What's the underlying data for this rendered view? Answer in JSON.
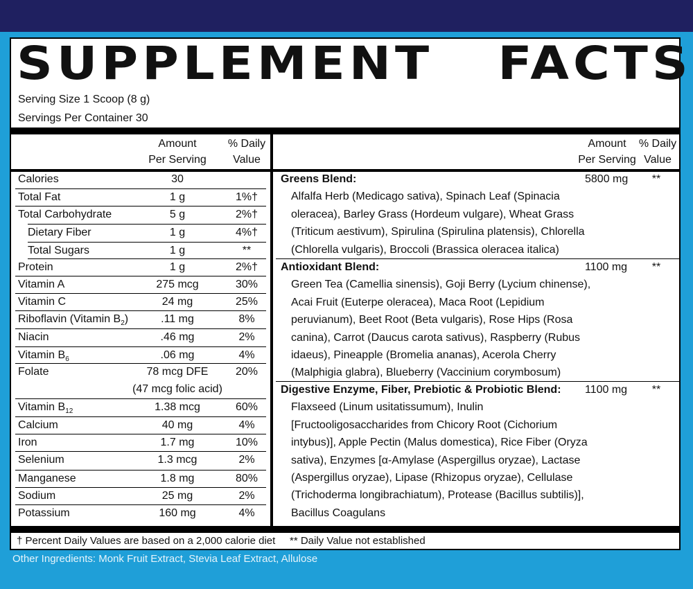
{
  "title": "SUPPLEMENT   FACTS",
  "serving_size": "Serving Size 1 Scoop (8 g)",
  "servings_per_container": "Servings Per Container 30",
  "headers": {
    "amount": "Amount",
    "per_serving": "Per Serving",
    "dv_top": "% Daily",
    "dv_bottom": "Value"
  },
  "nutrients": [
    {
      "name": "Calories",
      "amount": "30",
      "dv": ""
    },
    {
      "name": "Total Fat",
      "amount": "1 g",
      "dv": "1%†"
    },
    {
      "name": "Total Carbohydrate",
      "amount": "5 g",
      "dv": "2%†"
    },
    {
      "name": "Dietary Fiber",
      "amount": "1 g",
      "dv": "4%†"
    },
    {
      "name": "Total Sugars",
      "amount": "1 g",
      "dv": "**"
    },
    {
      "name": "Protein",
      "amount": "1 g",
      "dv": "2%†"
    },
    {
      "name": "Vitamin A",
      "amount": "275 mcg",
      "dv": "30%"
    },
    {
      "name": "Vitamin C",
      "amount": "24 mg",
      "dv": "25%"
    },
    {
      "name": "Riboflavin (Vitamin B",
      "sub": "2",
      "name_end": ")",
      "amount": ".11 mg",
      "dv": "8%"
    },
    {
      "name": "Niacin",
      "amount": ".46 mg",
      "dv": "2%"
    },
    {
      "name": "Vitamin B",
      "sub": "6",
      "amount": ".06 mg",
      "dv": "4%"
    },
    {
      "name": "Folate",
      "amount": "78 mcg DFE",
      "amount2": "(47 mcg folic acid)",
      "dv": "20%"
    },
    {
      "name": "Vitamin B",
      "sub": "12",
      "amount": "1.38 mcg",
      "dv": "60%"
    },
    {
      "name": "Calcium",
      "amount": "40 mg",
      "dv": "4%"
    },
    {
      "name": "Iron",
      "amount": "1.7 mg",
      "dv": "10%"
    },
    {
      "name": "Selenium",
      "amount": "1.3 mcg",
      "dv": "2%"
    },
    {
      "name": "Manganese",
      "amount": "1.8 mg",
      "dv": "80%"
    },
    {
      "name": "Sodium",
      "amount": "25 mg",
      "dv": "2%"
    },
    {
      "name": "Potassium",
      "amount": "160 mg",
      "dv": "4%"
    }
  ],
  "blends": [
    {
      "name": "Greens Blend:",
      "amount": "5800 mg",
      "dv": "**",
      "lines": [
        "Alfalfa Herb (Medicago sativa), Spinach Leaf (Spinacia",
        "oleracea), Barley Grass (Hordeum vulgare), Wheat Grass",
        "(Triticum aestivum), Spirulina (Spirulina platensis), Chlorella",
        "(Chlorella vulgaris), Broccoli (Brassica oleracea italica)"
      ]
    },
    {
      "name": "Antioxidant Blend:",
      "amount": "1100 mg",
      "dv": "**",
      "lines": [
        "Green Tea (Camellia sinensis), Goji Berry (Lycium chinense),",
        "Acai Fruit (Euterpe oleracea), Maca Root (Lepidium",
        "peruvianum), Beet Root (Beta vulgaris), Rose Hips (Rosa",
        "canina), Carrot (Daucus carota sativus), Raspberry (Rubus",
        "idaeus), Pineapple (Bromelia ananas), Acerola Cherry",
        "(Malphigia glabra), Blueberry (Vaccinium corymbosum)"
      ]
    },
    {
      "name": "Digestive Enzyme, Fiber, Prebiotic & Probiotic Blend:",
      "amount": "1100 mg",
      "dv": "**",
      "lines": [
        "Flaxseed (Linum usitatissumum), Inulin",
        "[Fructooligosaccharides from Chicory Root (Cichorium",
        "intybus)], Apple Pectin (Malus domestica), Rice Fiber (Oryza",
        "sativa), Enzymes [α-Amylase (Aspergillus oryzae), Lactase",
        "(Aspergillus oryzae),  Lipase (Rhizopus oryzae), Cellulase",
        "(Trichoderma longibrachiatum), Protease (Bacillus subtilis)],",
        " Bacillus Coagulans"
      ]
    }
  ],
  "footnote_dagger": "† Percent Daily Values are based on a 2,000 calorie diet",
  "footnote_star": "** Daily Value not established",
  "other_ingredients": "Other Ingredients: Monk Fruit Extract, Stevia Leaf Extract, Allulose",
  "colors": {
    "background": "#1f9fd8",
    "top_bar": "#1f2060",
    "panel": "#ffffff"
  }
}
